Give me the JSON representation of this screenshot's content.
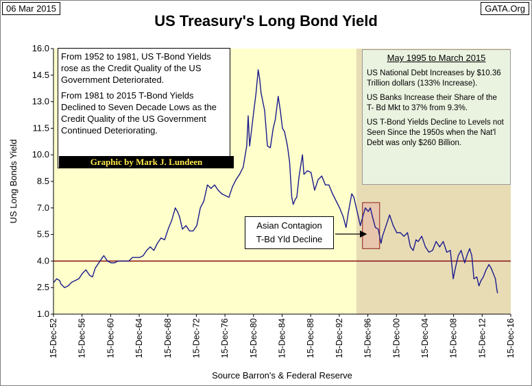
{
  "header": {
    "date": "06 Mar 2015",
    "source_tag": "GATA.Org",
    "title": "US Treasury's Long Bond Yield"
  },
  "annotations": {
    "left_note_p1": "From 1952 to 1981, US T-Bond Yields rose as the Credit Quality of the US Government  Deteriorated.",
    "left_note_p2": "From 1981 to 2015 T-Bond Yields Declined to Seven Decade Lows as the Credit Quality of the US Government Continued Deteriorating.",
    "credit": "Graphic by Mark J. Lundeen",
    "right_head": "May 1995 to March 2015",
    "right_p1": "US National Debt Increases by $10.36 Trillion dollars (133% Increase).",
    "right_p2": "US Banks Increase their Share of the T- Bd Mkt to 37% from 9.3%.",
    "right_p3": "US T-Bond Yields Decline to Levels not Seen Since the 1950s when the Nat'l Debt was only $260 Billion.",
    "callout_line1": "Asian Contagion",
    "callout_line2": "T-Bd Yld Decline"
  },
  "colors": {
    "plot_bg": "#ffffcc",
    "shaded_bg": "#e8dcb5",
    "series": "#1a1a8c",
    "ref_line": "#8b1a1a",
    "highlight_fill": "#e8b7a8",
    "highlight_stroke": "#8b1a1a"
  },
  "chart_data": {
    "type": "line",
    "title": "US Treasury's Long Bond Yield",
    "xlabel": "Source Barron's & Federal Reserve",
    "ylabel": "US Long Bonds Yield",
    "xlim": [
      1952.95,
      2016.95
    ],
    "ylim": [
      1.0,
      16.0
    ],
    "yticks": [
      1.0,
      2.5,
      4.0,
      5.5,
      7.0,
      8.5,
      10.0,
      11.5,
      13.0,
      14.5,
      16.0
    ],
    "xtick_labels": [
      "15-Dec-52",
      "15-Dec-56",
      "15-Dec-60",
      "15-Dec-64",
      "15-Dec-68",
      "15-Dec-72",
      "15-Dec-76",
      "15-Dec-80",
      "15-Dec-84",
      "15-Dec-88",
      "15-Dec-92",
      "15-Dec-96",
      "15-Dec-00",
      "15-Dec-04",
      "15-Dec-08",
      "15-Dec-12",
      "15-Dec-16"
    ],
    "xtick_years": [
      1952.95,
      1956.95,
      1960.95,
      1964.95,
      1968.95,
      1972.95,
      1976.95,
      1980.95,
      1984.95,
      1988.95,
      1992.95,
      1996.95,
      2000.95,
      2004.95,
      2008.95,
      2012.95,
      2016.95
    ],
    "reference_line": 4.0,
    "shaded_region": [
      1995.35,
      2016.95
    ],
    "highlight_box": {
      "x": [
        1996.2,
        1998.6
      ],
      "y": [
        4.7,
        7.3
      ]
    },
    "series": [
      {
        "name": "US Long Bond Yield",
        "points": [
          [
            1953.0,
            2.8
          ],
          [
            1953.4,
            3.0
          ],
          [
            1953.8,
            2.9
          ],
          [
            1954.0,
            2.7
          ],
          [
            1954.5,
            2.5
          ],
          [
            1955.0,
            2.6
          ],
          [
            1955.5,
            2.8
          ],
          [
            1956.0,
            2.9
          ],
          [
            1956.5,
            3.0
          ],
          [
            1957.0,
            3.3
          ],
          [
            1957.5,
            3.5
          ],
          [
            1958.0,
            3.2
          ],
          [
            1958.4,
            3.1
          ],
          [
            1958.8,
            3.6
          ],
          [
            1959.3,
            3.9
          ],
          [
            1959.8,
            4.2
          ],
          [
            1960.0,
            4.3
          ],
          [
            1960.5,
            4.0
          ],
          [
            1961.0,
            3.9
          ],
          [
            1961.5,
            3.9
          ],
          [
            1962.0,
            4.0
          ],
          [
            1962.5,
            4.0
          ],
          [
            1963.0,
            4.0
          ],
          [
            1963.5,
            4.0
          ],
          [
            1964.0,
            4.2
          ],
          [
            1964.5,
            4.2
          ],
          [
            1965.0,
            4.2
          ],
          [
            1965.5,
            4.3
          ],
          [
            1966.0,
            4.6
          ],
          [
            1966.5,
            4.8
          ],
          [
            1967.0,
            4.6
          ],
          [
            1967.5,
            5.0
          ],
          [
            1968.0,
            5.3
          ],
          [
            1968.5,
            5.2
          ],
          [
            1969.0,
            5.8
          ],
          [
            1969.5,
            6.3
          ],
          [
            1970.0,
            7.0
          ],
          [
            1970.3,
            6.8
          ],
          [
            1970.6,
            6.5
          ],
          [
            1971.0,
            5.8
          ],
          [
            1971.5,
            6.0
          ],
          [
            1972.0,
            5.7
          ],
          [
            1972.5,
            5.7
          ],
          [
            1973.0,
            6.0
          ],
          [
            1973.5,
            7.0
          ],
          [
            1974.0,
            7.4
          ],
          [
            1974.5,
            8.3
          ],
          [
            1975.0,
            8.1
          ],
          [
            1975.5,
            8.3
          ],
          [
            1976.0,
            8.0
          ],
          [
            1976.5,
            7.8
          ],
          [
            1977.0,
            7.7
          ],
          [
            1977.5,
            7.6
          ],
          [
            1978.0,
            8.2
          ],
          [
            1978.5,
            8.6
          ],
          [
            1979.0,
            8.9
          ],
          [
            1979.5,
            9.3
          ],
          [
            1980.0,
            10.5
          ],
          [
            1980.2,
            12.2
          ],
          [
            1980.4,
            10.5
          ],
          [
            1980.7,
            11.5
          ],
          [
            1981.0,
            12.5
          ],
          [
            1981.3,
            13.5
          ],
          [
            1981.6,
            14.8
          ],
          [
            1981.8,
            14.3
          ],
          [
            1982.0,
            13.5
          ],
          [
            1982.5,
            12.5
          ],
          [
            1982.9,
            10.5
          ],
          [
            1983.3,
            10.4
          ],
          [
            1983.7,
            11.5
          ],
          [
            1984.0,
            12.0
          ],
          [
            1984.4,
            13.3
          ],
          [
            1984.7,
            12.5
          ],
          [
            1985.0,
            11.5
          ],
          [
            1985.3,
            11.3
          ],
          [
            1985.7,
            10.5
          ],
          [
            1986.0,
            9.6
          ],
          [
            1986.3,
            7.6
          ],
          [
            1986.5,
            7.2
          ],
          [
            1986.8,
            7.5
          ],
          [
            1987.0,
            7.6
          ],
          [
            1987.3,
            8.7
          ],
          [
            1987.6,
            9.5
          ],
          [
            1987.8,
            10.0
          ],
          [
            1988.0,
            8.9
          ],
          [
            1988.5,
            9.1
          ],
          [
            1989.0,
            9.0
          ],
          [
            1989.5,
            8.0
          ],
          [
            1990.0,
            8.6
          ],
          [
            1990.5,
            8.8
          ],
          [
            1991.0,
            8.3
          ],
          [
            1991.5,
            8.3
          ],
          [
            1992.0,
            7.8
          ],
          [
            1992.5,
            7.4
          ],
          [
            1993.0,
            7.0
          ],
          [
            1993.5,
            6.5
          ],
          [
            1993.9,
            5.9
          ],
          [
            1994.2,
            6.7
          ],
          [
            1994.7,
            7.8
          ],
          [
            1995.0,
            7.6
          ],
          [
            1995.5,
            6.7
          ],
          [
            1995.9,
            6.0
          ],
          [
            1996.3,
            6.6
          ],
          [
            1996.6,
            7.0
          ],
          [
            1997.0,
            6.8
          ],
          [
            1997.3,
            7.0
          ],
          [
            1997.6,
            6.5
          ],
          [
            1998.0,
            5.9
          ],
          [
            1998.4,
            5.8
          ],
          [
            1998.8,
            5.0
          ],
          [
            1999.0,
            5.4
          ],
          [
            1999.5,
            6.0
          ],
          [
            2000.0,
            6.6
          ],
          [
            2000.5,
            6.0
          ],
          [
            2001.0,
            5.6
          ],
          [
            2001.5,
            5.6
          ],
          [
            2002.0,
            5.4
          ],
          [
            2002.5,
            5.6
          ],
          [
            2002.9,
            4.8
          ],
          [
            2003.3,
            4.6
          ],
          [
            2003.7,
            5.2
          ],
          [
            2004.0,
            5.1
          ],
          [
            2004.5,
            5.4
          ],
          [
            2005.0,
            4.8
          ],
          [
            2005.5,
            4.5
          ],
          [
            2006.0,
            4.6
          ],
          [
            2006.5,
            5.1
          ],
          [
            2007.0,
            4.8
          ],
          [
            2007.5,
            5.1
          ],
          [
            2008.0,
            4.5
          ],
          [
            2008.5,
            4.6
          ],
          [
            2008.9,
            3.0
          ],
          [
            2009.2,
            3.6
          ],
          [
            2009.6,
            4.3
          ],
          [
            2010.0,
            4.6
          ],
          [
            2010.5,
            3.9
          ],
          [
            2010.9,
            4.4
          ],
          [
            2011.2,
            4.7
          ],
          [
            2011.5,
            4.3
          ],
          [
            2011.8,
            3.0
          ],
          [
            2012.2,
            3.1
          ],
          [
            2012.5,
            2.6
          ],
          [
            2012.8,
            2.9
          ],
          [
            2013.1,
            3.1
          ],
          [
            2013.5,
            3.5
          ],
          [
            2013.9,
            3.8
          ],
          [
            2014.2,
            3.6
          ],
          [
            2014.5,
            3.3
          ],
          [
            2014.8,
            3.0
          ],
          [
            2015.0,
            2.4
          ],
          [
            2015.1,
            2.2
          ]
        ]
      }
    ]
  }
}
